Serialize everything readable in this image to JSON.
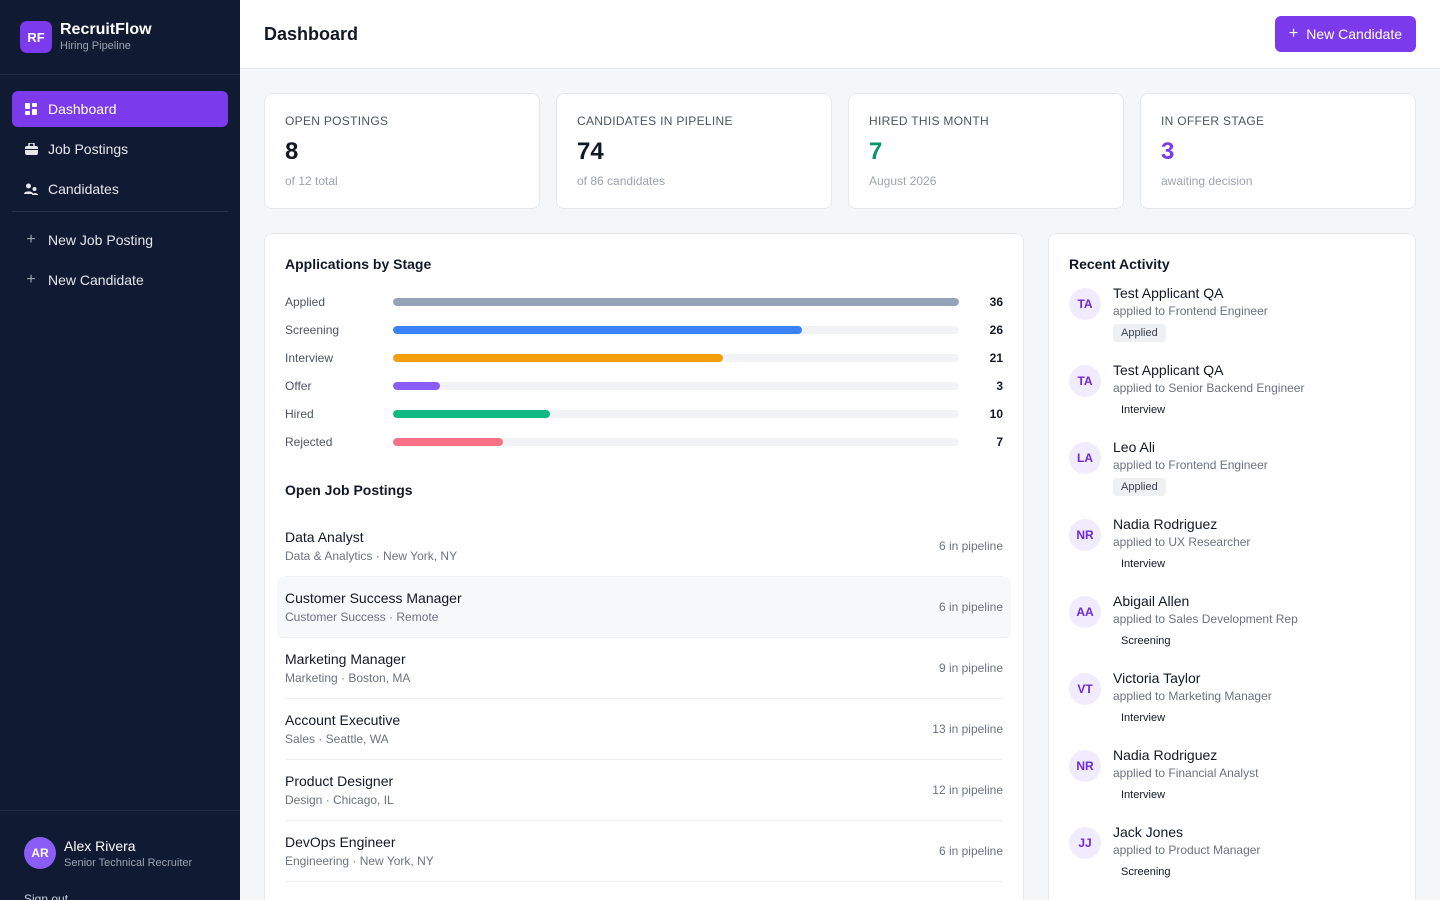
{
  "brand": {
    "logo": "RF",
    "name": "RecruitFlow",
    "subtitle": "Hiring Pipeline"
  },
  "nav": {
    "items": [
      {
        "label": "Dashboard",
        "icon": "dashboard-icon",
        "active": true
      },
      {
        "label": "Job Postings",
        "icon": "briefcase-icon"
      },
      {
        "label": "Candidates",
        "icon": "users-icon"
      }
    ],
    "actions": [
      {
        "label": "New Job Posting",
        "icon": "plus-icon"
      },
      {
        "label": "New Candidate",
        "icon": "plus-icon"
      }
    ]
  },
  "user": {
    "initials": "AR",
    "name": "Alex Rivera",
    "role": "Senior Technical Recruiter",
    "signout": "Sign out"
  },
  "header": {
    "title": "Dashboard",
    "new_candidate_label": "New Candidate"
  },
  "stats": [
    {
      "label": "OPEN POSTINGS",
      "value": "8",
      "sub": "of 12 total",
      "color": "#111827"
    },
    {
      "label": "CANDIDATES IN PIPELINE",
      "value": "74",
      "sub": "of 86 candidates",
      "color": "#111827"
    },
    {
      "label": "HIRED THIS MONTH",
      "value": "7",
      "sub": "August 2026",
      "color": "#059669"
    },
    {
      "label": "IN OFFER STAGE",
      "value": "3",
      "sub": "awaiting decision",
      "color": "#7c3aed"
    }
  ],
  "chart_data": {
    "type": "bar",
    "title": "Applications by Stage",
    "categories": [
      "Applied",
      "Screening",
      "Interview",
      "Offer",
      "Hired",
      "Rejected"
    ],
    "values": [
      36,
      26,
      21,
      3,
      10,
      7
    ],
    "colors": [
      "#94a3b8",
      "#3b82f6",
      "#f59e0b",
      "#8b5cf6",
      "#10b981",
      "#f87187"
    ],
    "ylim": [
      0,
      36
    ]
  },
  "jobs": {
    "title": "Open Job Postings",
    "items": [
      {
        "title": "Data Analyst",
        "meta": "Data & Analytics · New York, NY",
        "count": "6 in pipeline"
      },
      {
        "title": "Customer Success Manager",
        "meta": "Customer Success · Remote",
        "count": "6 in pipeline"
      },
      {
        "title": "Marketing Manager",
        "meta": "Marketing · Boston, MA",
        "count": "9 in pipeline"
      },
      {
        "title": "Account Executive",
        "meta": "Sales · Seattle, WA",
        "count": "13 in pipeline"
      },
      {
        "title": "Product Designer",
        "meta": "Design · Chicago, IL",
        "count": "12 in pipeline"
      },
      {
        "title": "DevOps Engineer",
        "meta": "Engineering · New York, NY",
        "count": "6 in pipeline"
      }
    ]
  },
  "activity": {
    "title": "Recent Activity",
    "items": [
      {
        "initials": "TA",
        "name": "Test Applicant QA",
        "desc": "applied to Frontend Engineer",
        "badge": "Applied"
      },
      {
        "initials": "TA",
        "name": "Test Applicant QA",
        "desc": "applied to Senior Backend Engineer",
        "badge": "Interview"
      },
      {
        "initials": "LA",
        "name": "Leo Ali",
        "desc": "applied to Frontend Engineer",
        "badge": "Applied"
      },
      {
        "initials": "NR",
        "name": "Nadia Rodriguez",
        "desc": "applied to UX Researcher",
        "badge": "Interview"
      },
      {
        "initials": "AA",
        "name": "Abigail Allen",
        "desc": "applied to Sales Development Rep",
        "badge": "Screening"
      },
      {
        "initials": "VT",
        "name": "Victoria Taylor",
        "desc": "applied to Marketing Manager",
        "badge": "Interview"
      },
      {
        "initials": "NR",
        "name": "Nadia Rodriguez",
        "desc": "applied to Financial Analyst",
        "badge": "Interview"
      },
      {
        "initials": "JJ",
        "name": "Jack Jones",
        "desc": "applied to Product Manager",
        "badge": "Screening"
      }
    ]
  }
}
